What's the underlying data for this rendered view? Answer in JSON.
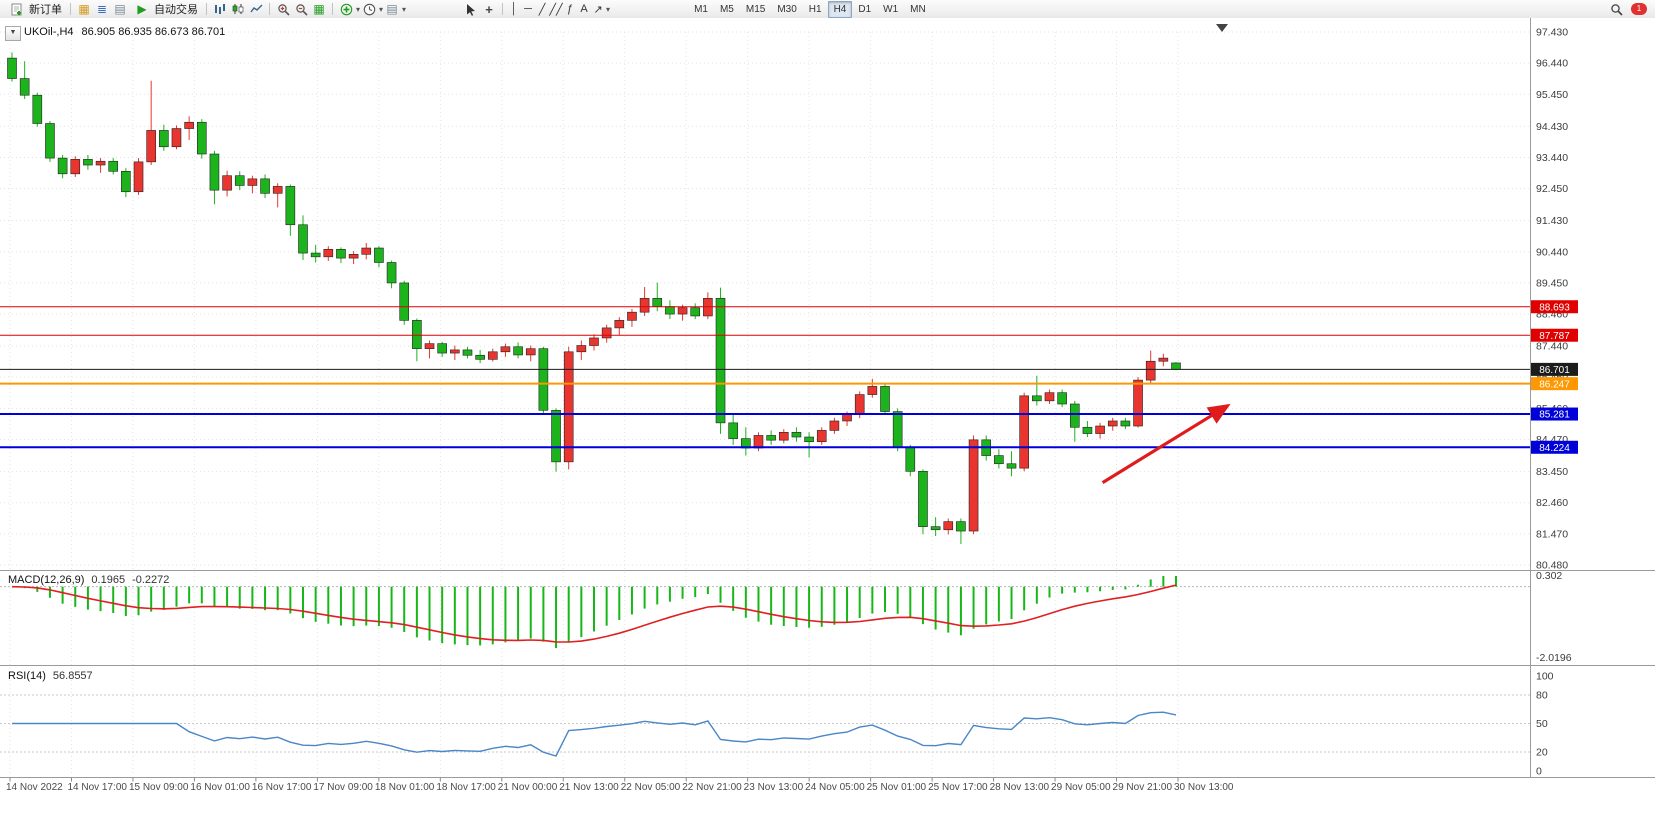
{
  "toolbar": {
    "new_order": "新订单",
    "auto_trading": "自动交易",
    "timeframes": [
      "M1",
      "M5",
      "M15",
      "M30",
      "H1",
      "H4",
      "D1",
      "W1",
      "MN"
    ],
    "active_timeframe": "H4",
    "line_tools": {
      "vertical": "│",
      "horizontal": "─",
      "trend": "╱",
      "channel": "╱╱",
      "fibonacci": "ƒ",
      "text": "A",
      "arrows": "↗"
    },
    "notification_count": "1"
  },
  "icons": {
    "one_click": "▼",
    "chevron": "▾",
    "market_watch": "▦",
    "navigator": "≣",
    "terminal": "▤",
    "autotrading_play": "▶",
    "tile_windows": "▦",
    "template": "▤",
    "crosshair": "+"
  },
  "chart_data": {
    "type": "candlestick",
    "symbol": "UKOil-",
    "period": "H4",
    "title": "UKOil-,H4",
    "ohlc_label": "86.905 86.935 86.673 86.701",
    "ylim": [
      80.48,
      97.43
    ],
    "y_ticks": [
      "97.430",
      "96.440",
      "95.450",
      "94.430",
      "93.440",
      "92.450",
      "91.430",
      "90.440",
      "89.450",
      "88.460",
      "87.440",
      "86.460",
      "85.460",
      "84.470",
      "83.450",
      "82.460",
      "81.470",
      "80.480"
    ],
    "x_labels": [
      "14 Nov 2022",
      "14 Nov 17:00",
      "15 Nov 09:00",
      "16 Nov 01:00",
      "16 Nov 17:00",
      "17 Nov 09:00",
      "18 Nov 01:00",
      "18 Nov 17:00",
      "21 Nov 00:00",
      "21 Nov 13:00",
      "22 Nov 05:00",
      "22 Nov 21:00",
      "23 Nov 13:00",
      "24 Nov 05:00",
      "25 Nov 01:00",
      "25 Nov 17:00",
      "28 Nov 13:00",
      "29 Nov 05:00",
      "29 Nov 21:00",
      "30 Nov 13:00"
    ],
    "colors": {
      "bull": "#e8352f",
      "bear": "#1db31d",
      "grid": "#e3e3e3",
      "axis_text": "#3c3c3c"
    },
    "levels": [
      {
        "price": 88.693,
        "label": "88.693",
        "color": "#e00000",
        "width": 1
      },
      {
        "price": 87.787,
        "label": "87.787",
        "color": "#e00000",
        "width": 1
      },
      {
        "price": 86.701,
        "label": "86.701",
        "color": "#1c1c1c",
        "width": 1,
        "role": "current-price"
      },
      {
        "price": 86.247,
        "label": "86.247",
        "color": "#ff9800",
        "width": 2
      },
      {
        "price": 85.281,
        "label": "85.281",
        "color": "#0000d8",
        "width": 2
      },
      {
        "price": 84.224,
        "label": "84.224",
        "color": "#0000d8",
        "width": 2
      }
    ],
    "annotations": [
      {
        "type": "arrow",
        "color": "#e01b1b",
        "from_bar": 86.2,
        "from_price": 83.1,
        "to_bar": 96.1,
        "to_price": 85.55
      }
    ],
    "ohlc": [
      [
        96.6,
        96.78,
        95.85,
        95.95
      ],
      [
        95.95,
        96.5,
        95.3,
        95.42
      ],
      [
        95.42,
        95.5,
        94.42,
        94.52
      ],
      [
        94.52,
        94.6,
        93.3,
        93.42
      ],
      [
        93.42,
        93.52,
        92.78,
        92.92
      ],
      [
        92.92,
        93.48,
        92.82,
        93.38
      ],
      [
        93.38,
        93.52,
        93.05,
        93.2
      ],
      [
        93.2,
        93.42,
        92.95,
        93.32
      ],
      [
        93.32,
        93.42,
        92.9,
        93.0
      ],
      [
        93.0,
        93.1,
        92.18,
        92.35
      ],
      [
        92.35,
        93.42,
        92.25,
        93.3
      ],
      [
        93.3,
        95.88,
        93.2,
        94.3
      ],
      [
        94.3,
        94.48,
        93.65,
        93.78
      ],
      [
        93.78,
        94.46,
        93.7,
        94.36
      ],
      [
        94.36,
        94.75,
        94.0,
        94.56
      ],
      [
        94.56,
        94.66,
        93.4,
        93.55
      ],
      [
        93.55,
        93.65,
        91.95,
        92.4
      ],
      [
        92.4,
        93.02,
        92.2,
        92.86
      ],
      [
        92.86,
        93.0,
        92.4,
        92.55
      ],
      [
        92.55,
        92.86,
        92.3,
        92.76
      ],
      [
        92.76,
        92.9,
        92.15,
        92.3
      ],
      [
        92.3,
        92.62,
        91.85,
        92.52
      ],
      [
        92.52,
        92.58,
        90.95,
        91.3
      ],
      [
        91.3,
        91.6,
        90.18,
        90.4
      ],
      [
        90.4,
        90.66,
        90.1,
        90.28
      ],
      [
        90.28,
        90.62,
        90.15,
        90.52
      ],
      [
        90.52,
        90.58,
        90.08,
        90.24
      ],
      [
        90.24,
        90.46,
        90.05,
        90.36
      ],
      [
        90.36,
        90.72,
        90.2,
        90.56
      ],
      [
        90.56,
        90.62,
        89.95,
        90.1
      ],
      [
        90.1,
        90.16,
        89.28,
        89.45
      ],
      [
        89.45,
        89.52,
        88.12,
        88.26
      ],
      [
        88.26,
        88.32,
        86.96,
        87.36
      ],
      [
        87.36,
        87.62,
        87.05,
        87.52
      ],
      [
        87.52,
        87.58,
        87.1,
        87.22
      ],
      [
        87.22,
        87.46,
        87.0,
        87.32
      ],
      [
        87.32,
        87.42,
        87.05,
        87.15
      ],
      [
        87.15,
        87.32,
        86.9,
        87.02
      ],
      [
        87.02,
        87.36,
        86.95,
        87.26
      ],
      [
        87.26,
        87.52,
        87.1,
        87.42
      ],
      [
        87.42,
        87.56,
        87.05,
        87.16
      ],
      [
        87.16,
        87.46,
        86.96,
        87.36
      ],
      [
        87.36,
        87.42,
        85.28,
        85.4
      ],
      [
        85.4,
        85.46,
        83.45,
        83.76
      ],
      [
        83.76,
        87.42,
        83.52,
        87.26
      ],
      [
        87.26,
        87.62,
        87.0,
        87.46
      ],
      [
        87.46,
        87.82,
        87.3,
        87.7
      ],
      [
        87.7,
        88.12,
        87.55,
        88.02
      ],
      [
        88.02,
        88.36,
        87.8,
        88.26
      ],
      [
        88.26,
        88.62,
        88.05,
        88.52
      ],
      [
        88.52,
        89.32,
        88.4,
        88.96
      ],
      [
        88.96,
        89.46,
        88.55,
        88.7
      ],
      [
        88.7,
        88.9,
        88.3,
        88.46
      ],
      [
        88.46,
        88.76,
        88.25,
        88.66
      ],
      [
        88.66,
        88.8,
        88.3,
        88.4
      ],
      [
        88.4,
        89.15,
        88.3,
        88.96
      ],
      [
        88.96,
        89.3,
        84.65,
        85.0
      ],
      [
        85.0,
        85.3,
        84.3,
        84.5
      ],
      [
        84.5,
        84.86,
        83.96,
        84.2
      ],
      [
        84.2,
        84.7,
        84.1,
        84.6
      ],
      [
        84.6,
        84.76,
        84.3,
        84.45
      ],
      [
        84.45,
        84.8,
        84.35,
        84.7
      ],
      [
        84.7,
        84.86,
        84.4,
        84.55
      ],
      [
        84.55,
        84.7,
        83.9,
        84.4
      ],
      [
        84.4,
        84.86,
        84.3,
        84.76
      ],
      [
        84.76,
        85.16,
        84.65,
        85.06
      ],
      [
        85.06,
        85.36,
        84.9,
        85.26
      ],
      [
        85.26,
        86.0,
        85.15,
        85.9
      ],
      [
        85.9,
        86.4,
        85.8,
        86.16
      ],
      [
        86.16,
        86.26,
        85.25,
        85.36
      ],
      [
        85.36,
        85.46,
        84.1,
        84.22
      ],
      [
        84.22,
        84.3,
        83.3,
        83.46
      ],
      [
        83.46,
        83.52,
        81.46,
        81.7
      ],
      [
        81.7,
        82.0,
        81.4,
        81.6
      ],
      [
        81.6,
        81.96,
        81.45,
        81.86
      ],
      [
        81.86,
        81.96,
        81.15,
        81.56
      ],
      [
        81.56,
        84.6,
        81.46,
        84.46
      ],
      [
        84.46,
        84.6,
        83.8,
        83.96
      ],
      [
        83.96,
        84.16,
        83.55,
        83.7
      ],
      [
        83.7,
        84.1,
        83.3,
        83.56
      ],
      [
        83.56,
        85.96,
        83.46,
        85.86
      ],
      [
        85.86,
        86.5,
        85.55,
        85.7
      ],
      [
        85.7,
        86.06,
        85.6,
        85.96
      ],
      [
        85.96,
        86.06,
        85.5,
        85.6
      ],
      [
        85.6,
        85.7,
        84.4,
        84.86
      ],
      [
        84.86,
        85.06,
        84.55,
        84.66
      ],
      [
        84.66,
        85.0,
        84.5,
        84.9
      ],
      [
        84.9,
        85.16,
        84.75,
        85.06
      ],
      [
        85.06,
        85.16,
        84.8,
        84.9
      ],
      [
        84.9,
        86.46,
        84.85,
        86.36
      ],
      [
        86.36,
        87.3,
        86.25,
        86.96
      ],
      [
        86.96,
        87.2,
        86.8,
        87.06
      ],
      [
        86.905,
        86.935,
        86.673,
        86.701
      ]
    ]
  },
  "indicators": {
    "macd": {
      "name_label": "MACD(12,26,9)",
      "main_value": "0.1965",
      "signal_value": "-0.2272",
      "scale_max": "0.302",
      "scale_min": "-2.0196",
      "fast": 12,
      "slow": 26,
      "signal": 9,
      "histogram_color": "#18b718",
      "signal_color": "#e02020"
    },
    "rsi": {
      "name_label": "RSI(14)",
      "value": "56.8557",
      "period": 14,
      "scale_labels": [
        "100",
        "80",
        "50",
        "20",
        "0"
      ],
      "levels": [
        80,
        50,
        20
      ],
      "line_color": "#4a86c8"
    }
  }
}
